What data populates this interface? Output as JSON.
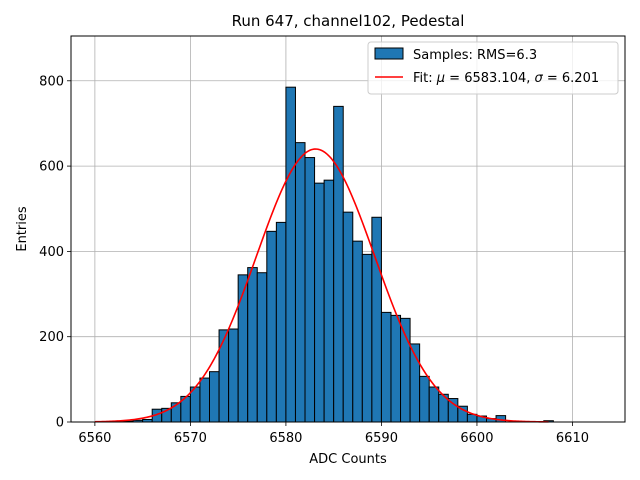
{
  "chart_data": {
    "type": "bar",
    "title": "Run 647, channel102, Pedestal",
    "xlabel": "ADC Counts",
    "ylabel": "Entries",
    "xlim": [
      6557.5,
      6615.5
    ],
    "ylim": [
      0,
      905
    ],
    "xticks": [
      6560,
      6570,
      6580,
      6590,
      6600,
      6610
    ],
    "yticks": [
      0,
      200,
      400,
      600,
      800
    ],
    "grid": true,
    "legend_position": "top-right",
    "bin_width": 1,
    "bar_color": "#1f77b4",
    "edge_color": "#000000",
    "fit_color": "#ff0000",
    "histogram": {
      "name": "Samples: RMS=6.3",
      "bin_starts": [
        6562,
        6563,
        6564,
        6565,
        6566,
        6567,
        6568,
        6569,
        6570,
        6571,
        6572,
        6573,
        6574,
        6575,
        6576,
        6577,
        6578,
        6579,
        6580,
        6581,
        6582,
        6583,
        6584,
        6585,
        6586,
        6587,
        6588,
        6589,
        6590,
        6591,
        6592,
        6593,
        6594,
        6595,
        6596,
        6597,
        6598,
        6599,
        6600,
        6601,
        6602,
        6607
      ],
      "values": [
        2,
        2,
        4,
        6,
        30,
        32,
        45,
        60,
        82,
        103,
        118,
        216,
        218,
        345,
        362,
        350,
        447,
        468,
        785,
        655,
        620,
        560,
        567,
        740,
        492,
        424,
        393,
        480,
        257,
        250,
        243,
        183,
        107,
        82,
        65,
        55,
        37,
        18,
        14,
        8,
        15,
        3
      ]
    },
    "fit": {
      "name_prefix": "Fit: ",
      "mu_symbol": "μ",
      "sigma_symbol": "σ",
      "mu_text": " = 6583.104, ",
      "sigma_text": " = 6.201",
      "mu": 6583.104,
      "sigma": 6.201,
      "amplitude": 640,
      "x_range": [
        6560,
        6607.5
      ]
    }
  }
}
